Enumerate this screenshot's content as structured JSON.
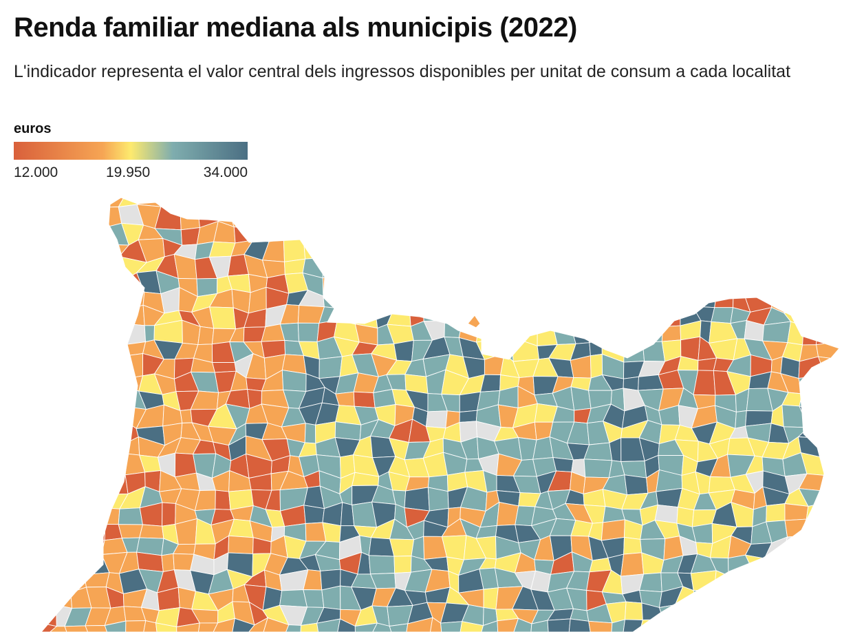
{
  "header": {
    "title": "Renda familiar mediana als municipis (2022)",
    "subtitle": "L'indicador representa el valor central dels ingressos disponibles per unitat de consum a cada localitat"
  },
  "legend": {
    "title": "euros",
    "min_label": "12.000",
    "mid_label": "19.950",
    "max_label": "34.000",
    "min_value": 12000,
    "mid_value": 19950,
    "max_value": 34000,
    "colors": [
      "#d9603b",
      "#f6a554",
      "#fdea6e",
      "#7fadae",
      "#4b6f83"
    ],
    "no_data_color": "#e2e2e2",
    "border_color": "#ffffff"
  }
}
